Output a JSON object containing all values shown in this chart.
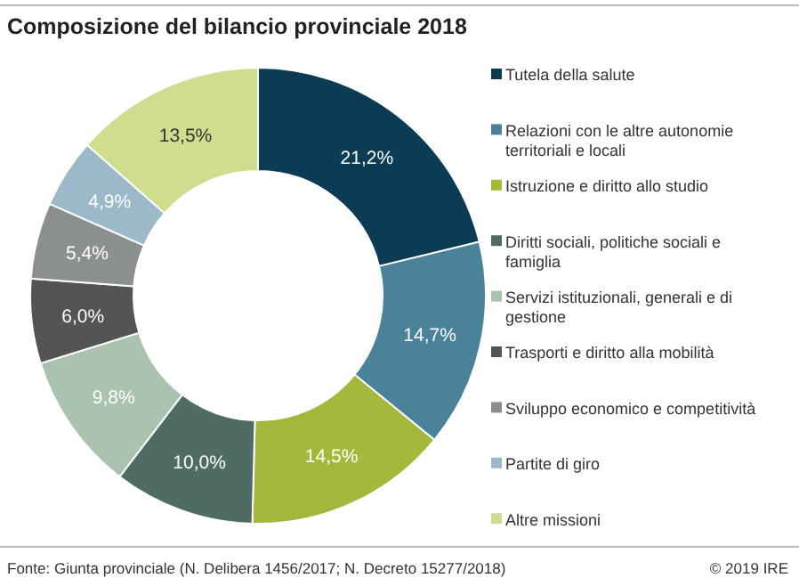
{
  "chart_data": {
    "type": "donut",
    "title": "Composizione del bilancio provinciale 2018",
    "categories": [
      "Tutela della salute",
      "Relazioni con le altre autonomie territoriali e locali",
      "Istruzione e diritto allo studio",
      "Diritti sociali, politiche sociali e famiglia",
      "Servizi istituzionali, generali e di gestione",
      "Trasporti e diritto alla mobilità",
      "Sviluppo economico e competitività",
      "Partite di giro",
      "Altre missioni"
    ],
    "values": [
      21.2,
      14.7,
      14.5,
      10.0,
      9.8,
      6.0,
      5.4,
      4.9,
      13.5
    ],
    "value_labels": [
      "21,2%",
      "14,7%",
      "14,5%",
      "10,0%",
      "9,8%",
      "6,0%",
      "5,4%",
      "4,9%",
      "13,5%"
    ],
    "colors": [
      "#0c3c53",
      "#4a8399",
      "#a5b83b",
      "#4e6c63",
      "#a9c3ae",
      "#535455",
      "#8b8f90",
      "#9bb9c9",
      "#cfdd8f"
    ],
    "legend": "right",
    "annotations": [
      "Fonte: Giunta provinciale (N. Delibera 1456/2017; N. Decreto 15277/2018)",
      "© 2019 IRE"
    ]
  }
}
